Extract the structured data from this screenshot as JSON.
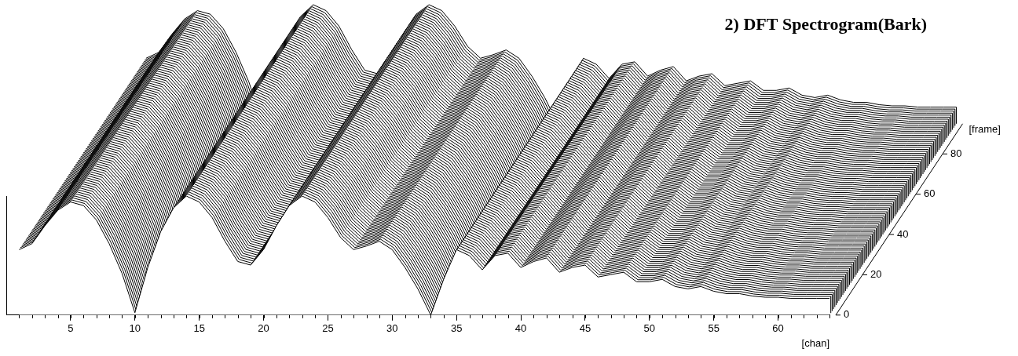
{
  "chart_data": {
    "type": "waterfall",
    "title": "2) DFT Spectrogram(Bark)",
    "x_label": "[chan]",
    "frame_label": "[frame]",
    "x": [
      1,
      2,
      3,
      4,
      5,
      6,
      7,
      8,
      9,
      10,
      11,
      12,
      13,
      14,
      15,
      16,
      17,
      18,
      19,
      20,
      21,
      22,
      23,
      24,
      25,
      26,
      27,
      28,
      29,
      30,
      31,
      32,
      33,
      34,
      35,
      36,
      37,
      38,
      39,
      40,
      41,
      42,
      43,
      44,
      45,
      46,
      47,
      48,
      49,
      50,
      51,
      52,
      53,
      54,
      55,
      56,
      57,
      58,
      59,
      60,
      61,
      62,
      63,
      64
    ],
    "values": [
      55,
      60,
      75,
      88,
      95,
      92,
      80,
      60,
      35,
      2,
      40,
      70,
      90,
      100,
      95,
      82,
      62,
      45,
      42,
      55,
      75,
      92,
      100,
      95,
      82,
      65,
      55,
      58,
      62,
      55,
      40,
      22,
      0,
      30,
      55,
      50,
      38,
      50,
      52,
      40,
      45,
      48,
      36,
      40,
      42,
      32,
      34,
      36,
      28,
      28,
      30,
      24,
      22,
      24,
      20,
      18,
      18,
      16,
      15,
      15,
      14,
      14,
      14,
      14
    ],
    "frames": [
      0,
      1,
      2,
      3,
      4,
      5,
      6,
      7,
      8,
      9,
      10,
      11,
      12,
      13,
      14,
      15,
      16,
      17,
      18,
      19,
      20,
      21,
      22,
      23,
      24,
      25,
      26,
      27,
      28,
      29,
      30,
      31,
      32,
      33,
      34,
      35,
      36,
      37,
      38,
      39,
      40,
      41,
      42,
      43,
      44,
      45,
      46,
      47,
      48,
      49,
      50,
      51,
      52,
      53,
      54,
      55,
      56,
      57,
      58,
      59,
      60,
      61,
      62,
      63,
      64,
      65,
      66,
      67,
      68,
      69,
      70,
      71,
      72,
      73,
      74,
      75,
      76,
      77,
      78,
      79,
      80,
      81,
      82,
      83,
      84,
      85,
      86,
      87,
      88,
      89,
      90,
      91,
      92,
      93,
      94,
      95
    ],
    "xlim": [
      0,
      64
    ],
    "xticks": [
      5,
      10,
      15,
      20,
      25,
      30,
      35,
      40,
      45,
      50,
      55,
      60
    ],
    "ylim": [
      0,
      100
    ],
    "frame_lim": [
      0,
      95
    ],
    "frame_ticks": [
      0,
      20,
      40,
      60,
      80
    ],
    "tick_labels": "x",
    "grid": false,
    "color": "#000000"
  }
}
